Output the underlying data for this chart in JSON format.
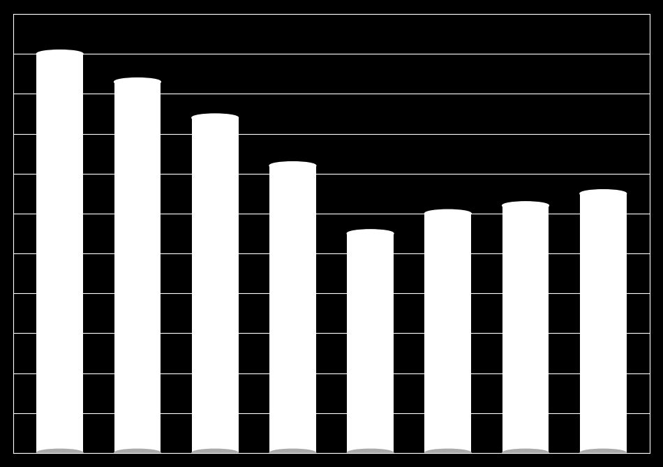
{
  "categories": [
    "",
    "",
    "",
    "",
    "",
    "",
    "",
    ""
  ],
  "values": [
    100,
    93,
    84,
    72,
    55,
    60,
    62,
    65
  ],
  "bar_color": "#ffffff",
  "background_color": "#000000",
  "grid_color": "#ffffff",
  "ylim": [
    0,
    110
  ],
  "ytick_count": 12,
  "bar_width": 0.6,
  "figure_width": 9.5,
  "figure_height": 6.69,
  "dpi": 100,
  "n_gridlines": 12
}
